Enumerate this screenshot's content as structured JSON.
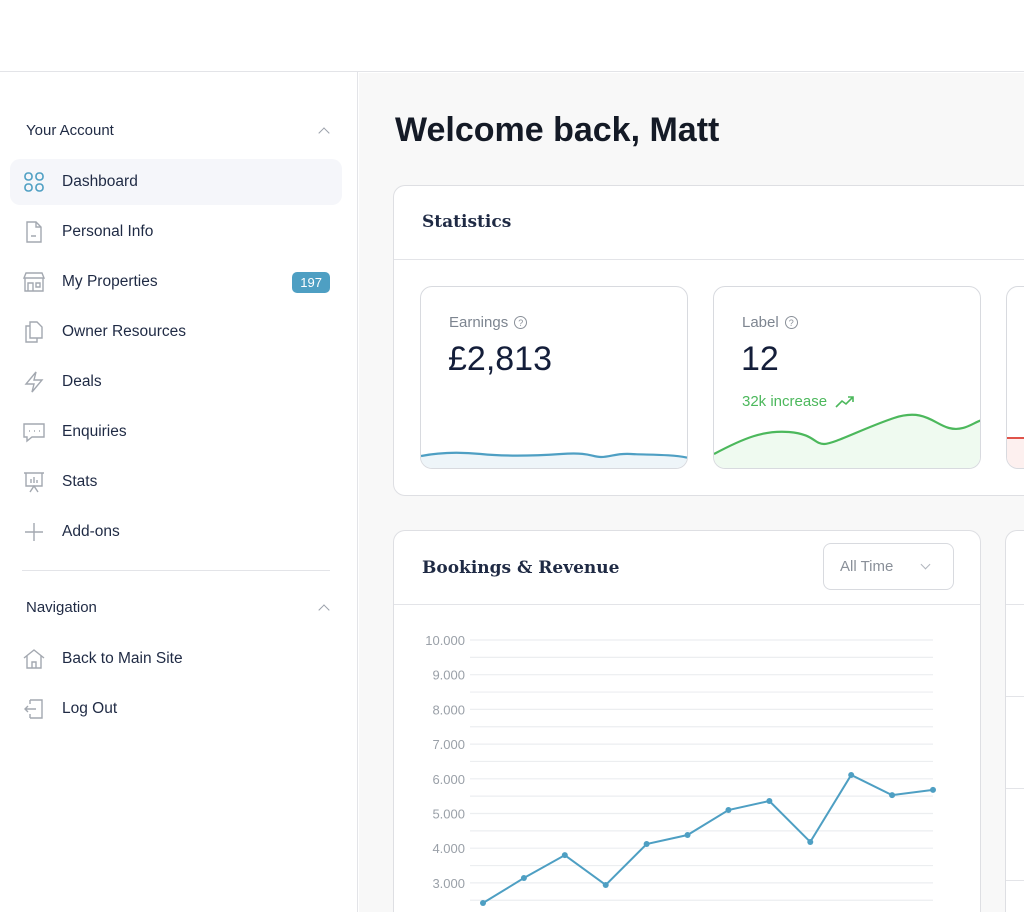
{
  "sidebar": {
    "account_title": "Your Account",
    "items": [
      {
        "label": "Dashboard",
        "icon": "grid-icon"
      },
      {
        "label": "Personal Info",
        "icon": "document-icon"
      },
      {
        "label": "My Properties",
        "icon": "store-icon",
        "badge": "197"
      },
      {
        "label": "Owner Resources",
        "icon": "copy-icon"
      },
      {
        "label": "Deals",
        "icon": "lightning-icon"
      },
      {
        "label": "Enquiries",
        "icon": "chat-icon"
      },
      {
        "label": "Stats",
        "icon": "presentation-icon"
      },
      {
        "label": "Add-ons",
        "icon": "plus-icon"
      }
    ],
    "nav_title": "Navigation",
    "nav_items": [
      {
        "label": "Back to Main Site",
        "icon": "home-icon"
      },
      {
        "label": "Log Out",
        "icon": "logout-icon"
      }
    ]
  },
  "main": {
    "welcome": "Welcome back, Matt",
    "statistics": {
      "title": "Statistics",
      "cards": [
        {
          "label": "Earnings",
          "value": "£2,813",
          "color": "#4e9fc3"
        },
        {
          "label": "Label",
          "value": "12",
          "change": "32k increase",
          "color": "#4cb85c"
        }
      ]
    },
    "bookings": {
      "title": "Bookings & Revenue",
      "range": "All Time"
    }
  },
  "chart_data": {
    "type": "line",
    "title": "Bookings & Revenue",
    "y_ticks": [
      "10.000",
      "9.000",
      "8.000",
      "7.000",
      "6.000",
      "5.000",
      "4.000",
      "3.000"
    ],
    "ylim": [
      2000,
      10000
    ],
    "values": [
      2420,
      3140,
      3800,
      2940,
      4120,
      4380,
      5100,
      5360,
      4180,
      6110,
      5530,
      5680
    ],
    "color": "#4e9fc3",
    "grid": true
  }
}
